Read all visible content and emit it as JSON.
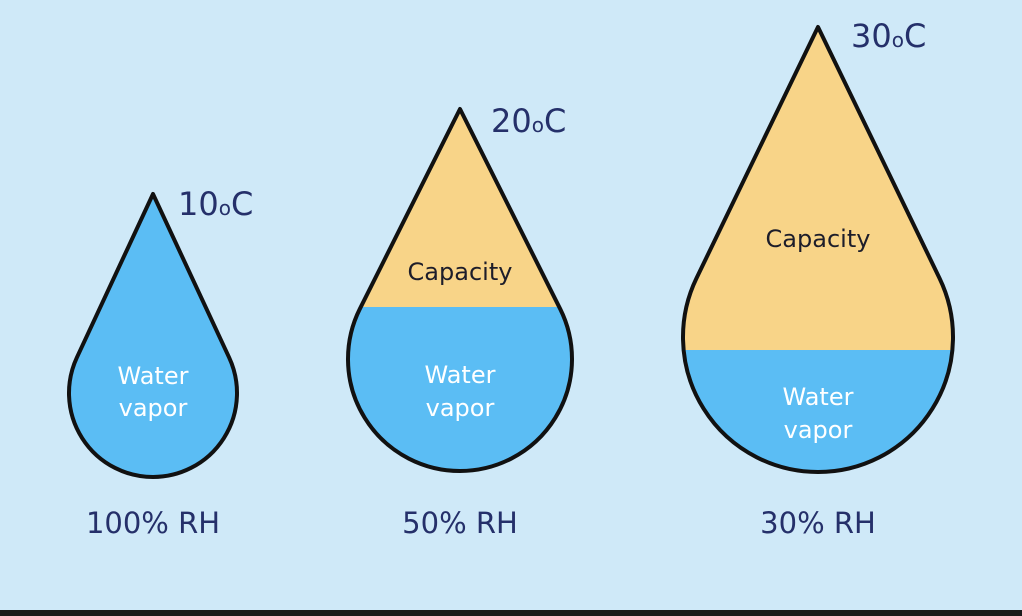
{
  "drops": [
    {
      "temperature": {
        "number": "10",
        "degree": "o",
        "unit": "C"
      },
      "water_label": [
        "Water",
        "vapor"
      ],
      "relative_humidity": "100% RH"
    },
    {
      "temperature": {
        "number": "20",
        "degree": "o",
        "unit": "C"
      },
      "capacity_label": "Capacity",
      "water_label": [
        "Water",
        "vapor"
      ],
      "relative_humidity": "50% RH"
    },
    {
      "temperature": {
        "number": "30",
        "degree": "o",
        "unit": "C"
      },
      "capacity_label": "Capacity",
      "water_label": [
        "Water",
        "vapor"
      ],
      "relative_humidity": "30% RH"
    }
  ]
}
